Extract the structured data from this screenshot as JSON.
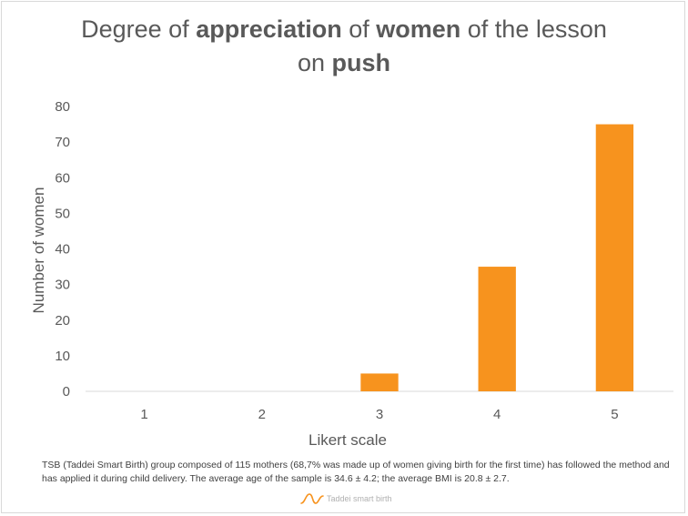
{
  "title": {
    "line1": [
      {
        "text": "Degree of ",
        "bold": false
      },
      {
        "text": "appreciation",
        "bold": true
      },
      {
        "text": " of ",
        "bold": false
      },
      {
        "text": "women",
        "bold": true
      },
      {
        "text": " of the lesson",
        "bold": false
      }
    ],
    "line2": [
      {
        "text": "on ",
        "bold": false
      },
      {
        "text": "push",
        "bold": true
      }
    ]
  },
  "chart_data": {
    "type": "bar",
    "categories": [
      "1",
      "2",
      "3",
      "4",
      "5"
    ],
    "values": [
      0,
      0,
      5,
      35,
      75
    ],
    "xlabel": "Likert scale",
    "ylabel": "Number of women",
    "ylim": [
      0,
      80
    ],
    "yticks": [
      0,
      10,
      20,
      30,
      40,
      50,
      60,
      70,
      80
    ],
    "grid": false,
    "legend": "none",
    "bar_color": "#f7931e"
  },
  "footnote": "TSB (Taddei Smart Birth) group composed of 115 mothers (68,7% was made up of women giving birth for the first time) has followed the method and has applied it during child delivery. The average age of the sample is 34.6 ± 4.2; the average BMI is 20.8 ± 2.7.",
  "logo": {
    "text": "Taddei smart birth",
    "icon": "wave-logo-icon",
    "color": "#f7931e"
  }
}
